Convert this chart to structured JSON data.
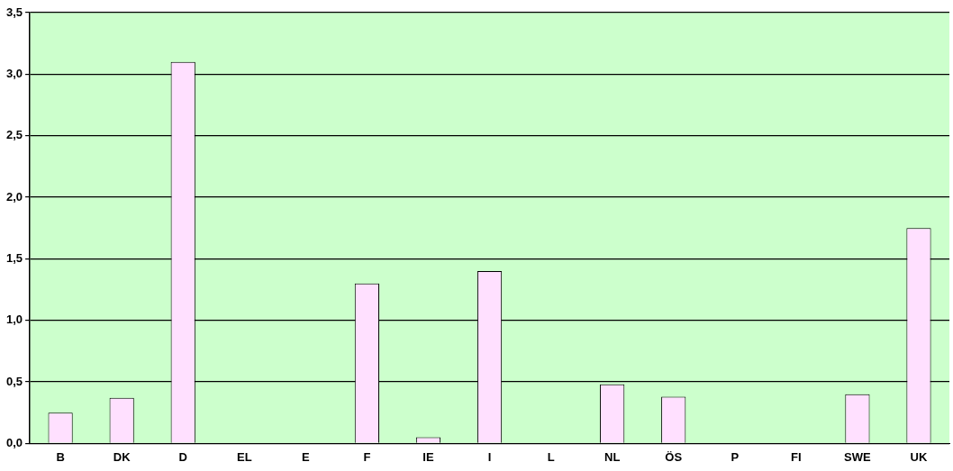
{
  "chart_data": {
    "type": "bar",
    "categories": [
      "B",
      "DK",
      "D",
      "EL",
      "E",
      "F",
      "IE",
      "I",
      "L",
      "NL",
      "ÖS",
      "P",
      "FI",
      "SWE",
      "UK"
    ],
    "values": [
      0.25,
      0.37,
      3.1,
      0,
      0,
      1.3,
      0.05,
      1.4,
      0,
      0.48,
      0.38,
      0,
      0,
      0.4,
      1.75
    ],
    "color": "#ffe0ff",
    "ylim": [
      0,
      3.5
    ],
    "yticks": [
      {
        "value": 0,
        "label": "0,0"
      },
      {
        "value": 0.5,
        "label": "0,5"
      },
      {
        "value": 1,
        "label": "1,0"
      },
      {
        "value": 1.5,
        "label": "1,5"
      },
      {
        "value": 2,
        "label": "2,0"
      },
      {
        "value": 2.5,
        "label": "2,5"
      },
      {
        "value": 3,
        "label": "3,0"
      },
      {
        "value": 3.5,
        "label": "3,5"
      }
    ],
    "grid": "y",
    "legend": false
  }
}
